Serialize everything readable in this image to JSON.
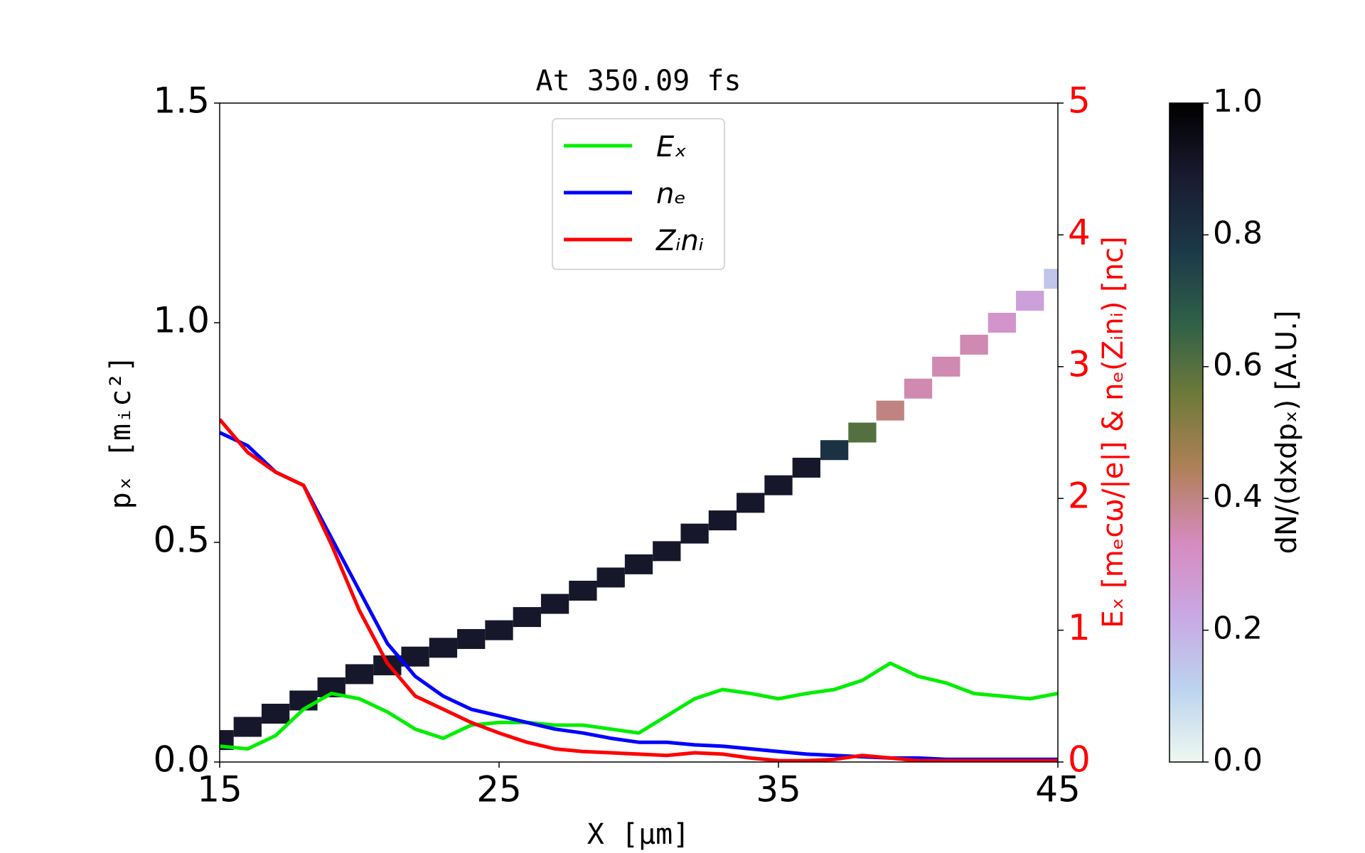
{
  "chart_data": {
    "type": "line",
    "title": "At 350.09 fs",
    "xlabel": "X [μm]",
    "ylabel": "pₓ [mᵢc²]",
    "y2label": "Eₓ [mₑcω/|e|]  &  nₑ(Zᵢnᵢ)  [nc]",
    "x": [
      15,
      16,
      17,
      18,
      19,
      20,
      21,
      22,
      23,
      24,
      25,
      26,
      27,
      28,
      29,
      30,
      31,
      32,
      33,
      34,
      35,
      36,
      37,
      38,
      39,
      40,
      41,
      42,
      43,
      44,
      45
    ],
    "xlim": [
      15,
      45
    ],
    "xticks": [
      15,
      25,
      35,
      45
    ],
    "ylim": [
      0,
      1.5
    ],
    "yticks": [
      {
        "value": 0,
        "label": "0.0"
      },
      {
        "value": 0.5,
        "label": "0.5"
      },
      {
        "value": 1,
        "label": "1.0"
      },
      {
        "value": 1.5,
        "label": "1.5"
      }
    ],
    "y2lim": [
      0,
      5
    ],
    "y2ticks": [
      0,
      1,
      2,
      3,
      4,
      5
    ],
    "y2color": "#ff0000",
    "legend": "upper center",
    "series": [
      {
        "name": "Eₓ",
        "color": "#00ee00",
        "axis": "y2",
        "values": [
          0.12,
          0.1,
          0.2,
          0.4,
          0.52,
          0.48,
          0.38,
          0.25,
          0.18,
          0.28,
          0.3,
          0.3,
          0.28,
          0.28,
          0.25,
          0.22,
          0.35,
          0.48,
          0.55,
          0.52,
          0.48,
          0.52,
          0.55,
          0.62,
          0.75,
          0.65,
          0.6,
          0.52,
          0.5,
          0.48,
          0.52
        ]
      },
      {
        "name": "nₑ",
        "color": "#0000ff",
        "axis": "y2",
        "values": [
          2.5,
          2.4,
          2.2,
          2.1,
          1.7,
          1.3,
          0.9,
          0.65,
          0.5,
          0.4,
          0.35,
          0.3,
          0.25,
          0.22,
          0.18,
          0.15,
          0.15,
          0.13,
          0.12,
          0.1,
          0.08,
          0.06,
          0.05,
          0.04,
          0.03,
          0.03,
          0.02,
          0.02,
          0.02,
          0.02,
          0.02
        ]
      },
      {
        "name": "Zᵢnᵢ",
        "color": "#ff0000",
        "axis": "y2",
        "values": [
          2.6,
          2.35,
          2.2,
          2.1,
          1.65,
          1.15,
          0.75,
          0.5,
          0.4,
          0.3,
          0.22,
          0.15,
          0.1,
          0.08,
          0.07,
          0.06,
          0.05,
          0.07,
          0.06,
          0.03,
          0.01,
          0.01,
          0.02,
          0.05,
          0.03,
          0.01,
          0.01,
          0.01,
          0.01,
          0.01,
          0.01
        ]
      }
    ],
    "heatmap": {
      "x": [
        15,
        16,
        17,
        18,
        19,
        20,
        21,
        22,
        23,
        24,
        25,
        26,
        27,
        28,
        29,
        30,
        31,
        32,
        33,
        34,
        35,
        36,
        37,
        38,
        39,
        40,
        41,
        42,
        43,
        44,
        45
      ],
      "y": [
        0.05,
        0.08,
        0.11,
        0.14,
        0.17,
        0.2,
        0.22,
        0.24,
        0.26,
        0.28,
        0.3,
        0.33,
        0.36,
        0.39,
        0.42,
        0.45,
        0.48,
        0.52,
        0.55,
        0.59,
        0.63,
        0.67,
        0.71,
        0.75,
        0.8,
        0.85,
        0.9,
        0.95,
        1.0,
        1.05,
        1.1
      ],
      "values": [
        0.9,
        0.9,
        0.9,
        0.9,
        0.9,
        0.9,
        0.9,
        0.9,
        0.9,
        0.9,
        0.9,
        0.9,
        0.9,
        0.9,
        0.9,
        0.9,
        0.9,
        0.9,
        0.9,
        0.9,
        0.9,
        0.9,
        0.8,
        0.6,
        0.4,
        0.35,
        0.35,
        0.35,
        0.3,
        0.25,
        0.15
      ],
      "colormap": [
        "#eef8f0",
        "#bcd3ef",
        "#c9a8e3",
        "#d68bbf",
        "#b0805a",
        "#6f7a3a",
        "#2f6048",
        "#1b3848",
        "#1a1a30",
        "#000000"
      ],
      "clim": [
        0,
        1
      ],
      "cticks": [
        {
          "value": 0,
          "label": "0.0"
        },
        {
          "value": 0.2,
          "label": "0.2"
        },
        {
          "value": 0.4,
          "label": "0.4"
        },
        {
          "value": 0.6,
          "label": "0.6"
        },
        {
          "value": 0.8,
          "label": "0.8"
        },
        {
          "value": 1,
          "label": "1.0"
        }
      ],
      "label": "dN/(dxdpₓ)  [A.U.]"
    }
  }
}
